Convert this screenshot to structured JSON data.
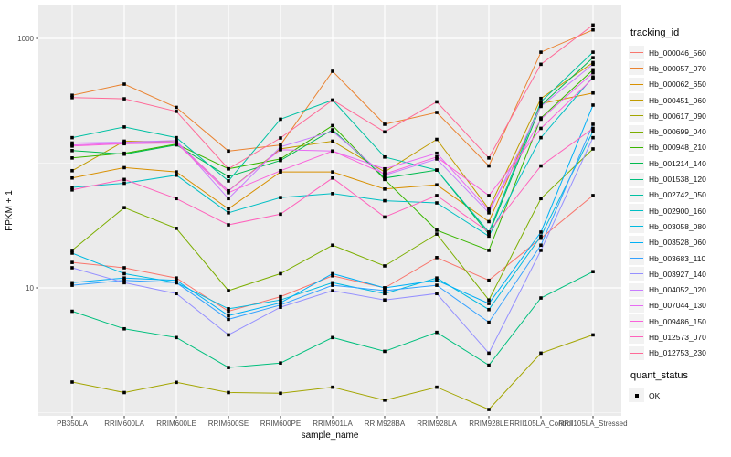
{
  "figure": {
    "background": "#FFFFFF",
    "panel_background": "#EBEBEB",
    "gridline_color": "#FFFFFF",
    "tick_label_color": "#4D4D4D",
    "axis_title_color": "#000000"
  },
  "legend": {
    "tracking_title": "tracking_id",
    "quant_title": "quant_status",
    "quant_ok_label": "OK"
  },
  "chart_data": {
    "type": "line",
    "title": "",
    "xlabel": "sample_name",
    "ylabel": "FPKM + 1",
    "y_scale": "log10",
    "y_tick_labels": [
      "1000",
      "10"
    ],
    "y_tick_values": [
      1000,
      10
    ],
    "y_minor_gridline_values": [
      1,
      100
    ],
    "ylim_log10": [
      -0.03,
      3.27
    ],
    "grid": true,
    "legend_position": "right",
    "point_shape": "square",
    "point_color": "#000000",
    "x_categories": [
      "PB350LA",
      "RRIM600LA",
      "RRIM600LE",
      "RRIM600SE",
      "RRIM600PE",
      "RRIM901LA",
      "RRIM928BA",
      "RRIM928LA",
      "RRIM928LE",
      "RRII105LA_Control",
      "RRII105LA_Stressed"
    ],
    "series": [
      {
        "name": "Hb_000046_560",
        "color": "#F8766D",
        "values": [
          16,
          14.5,
          12,
          6.5,
          8.5,
          12.5,
          10,
          17.5,
          11.5,
          25,
          55
        ]
      },
      {
        "name": "Hb_000057_070",
        "color": "#EA8331",
        "values": [
          350,
          430,
          280,
          125,
          140,
          545,
          205,
          255,
          95,
          775,
          1170
        ]
      },
      {
        "name": "Hb_000062_650",
        "color": "#D89000",
        "values": [
          76,
          92,
          85,
          43,
          85,
          85,
          62,
          67,
          34,
          300,
          365
        ]
      },
      {
        "name": "Hb_000451_060",
        "color": "#C09B00",
        "values": [
          87,
          150,
          148,
          60,
          130,
          150,
          85,
          155,
          43,
          330,
          640
        ]
      },
      {
        "name": "Hb_000617_090",
        "color": "#A3A500",
        "values": [
          1.76,
          1.45,
          1.75,
          1.45,
          1.43,
          1.6,
          1.26,
          1.6,
          1.06,
          3,
          4.2
        ]
      },
      {
        "name": "Hb_000699_040",
        "color": "#7CAE00",
        "values": [
          20,
          44,
          30,
          9.5,
          13,
          22,
          15,
          27,
          8,
          52,
          130
        ]
      },
      {
        "name": "Hb_000948_210",
        "color": "#39B600",
        "values": [
          110,
          120,
          142,
          90,
          108,
          200,
          74,
          29,
          20,
          230,
          560
        ]
      },
      {
        "name": "Hb_001214_140",
        "color": "#00BB4E",
        "values": [
          126,
          118,
          140,
          78,
          105,
          185,
          76,
          88,
          27,
          290,
          700
        ]
      },
      {
        "name": "Hb_001538_120",
        "color": "#00BF7D",
        "values": [
          6.5,
          4.7,
          4,
          2.3,
          2.5,
          4,
          3.1,
          4.4,
          2.4,
          8.3,
          13.5
        ]
      },
      {
        "name": "Hb_002742_050",
        "color": "#00C1A3",
        "values": [
          160,
          195,
          160,
          72,
          225,
          320,
          112,
          88,
          28,
          310,
          775
        ]
      },
      {
        "name": "Hb_002900_160",
        "color": "#00BFC4",
        "values": [
          64,
          69,
          80,
          40,
          53,
          57,
          50,
          48,
          26,
          160,
          490
        ]
      },
      {
        "name": "Hb_003058_080",
        "color": "#00BAE0",
        "values": [
          19,
          13,
          11,
          6.8,
          8,
          11,
          9,
          12,
          6.7,
          26,
          180
        ]
      },
      {
        "name": "Hb_003528_060",
        "color": "#00B0F6",
        "values": [
          11,
          12,
          11.5,
          6,
          7.6,
          13,
          10,
          11.5,
          7.5,
          28,
          292
        ]
      },
      {
        "name": "Hb_003683_110",
        "color": "#35A2FF",
        "values": [
          10.5,
          11.5,
          11,
          5.6,
          7.3,
          10.5,
          9.5,
          10.5,
          5.3,
          22,
          205
        ]
      },
      {
        "name": "Hb_003927_140",
        "color": "#9590FF",
        "values": [
          14.5,
          11,
          9,
          4.2,
          7,
          9.5,
          8,
          9,
          3,
          20,
          160
        ]
      },
      {
        "name": "Hb_004052_020",
        "color": "#C77CFF",
        "values": [
          145,
          147,
          152,
          52,
          135,
          180,
          80,
          108,
          40,
          285,
          620
        ]
      },
      {
        "name": "Hb_007044_130",
        "color": "#E76BF3",
        "values": [
          140,
          145,
          148,
          60,
          128,
          125,
          90,
          120,
          42,
          225,
          530
        ]
      },
      {
        "name": "Hb_009486_150",
        "color": "#FA62DB",
        "values": [
          137,
          143,
          145,
          58,
          87,
          125,
          82,
          112,
          55,
          190,
          480
        ]
      },
      {
        "name": "Hb_012573_070",
        "color": "#FF62BC",
        "values": [
          61,
          74,
          52,
          32,
          39,
          76,
          37,
          55,
          28,
          95,
          190
        ]
      },
      {
        "name": "Hb_012753_230",
        "color": "#FF6A98",
        "values": [
          335,
          328,
          260,
          90,
          159,
          320,
          178,
          310,
          110,
          620,
          1280
        ]
      }
    ]
  }
}
